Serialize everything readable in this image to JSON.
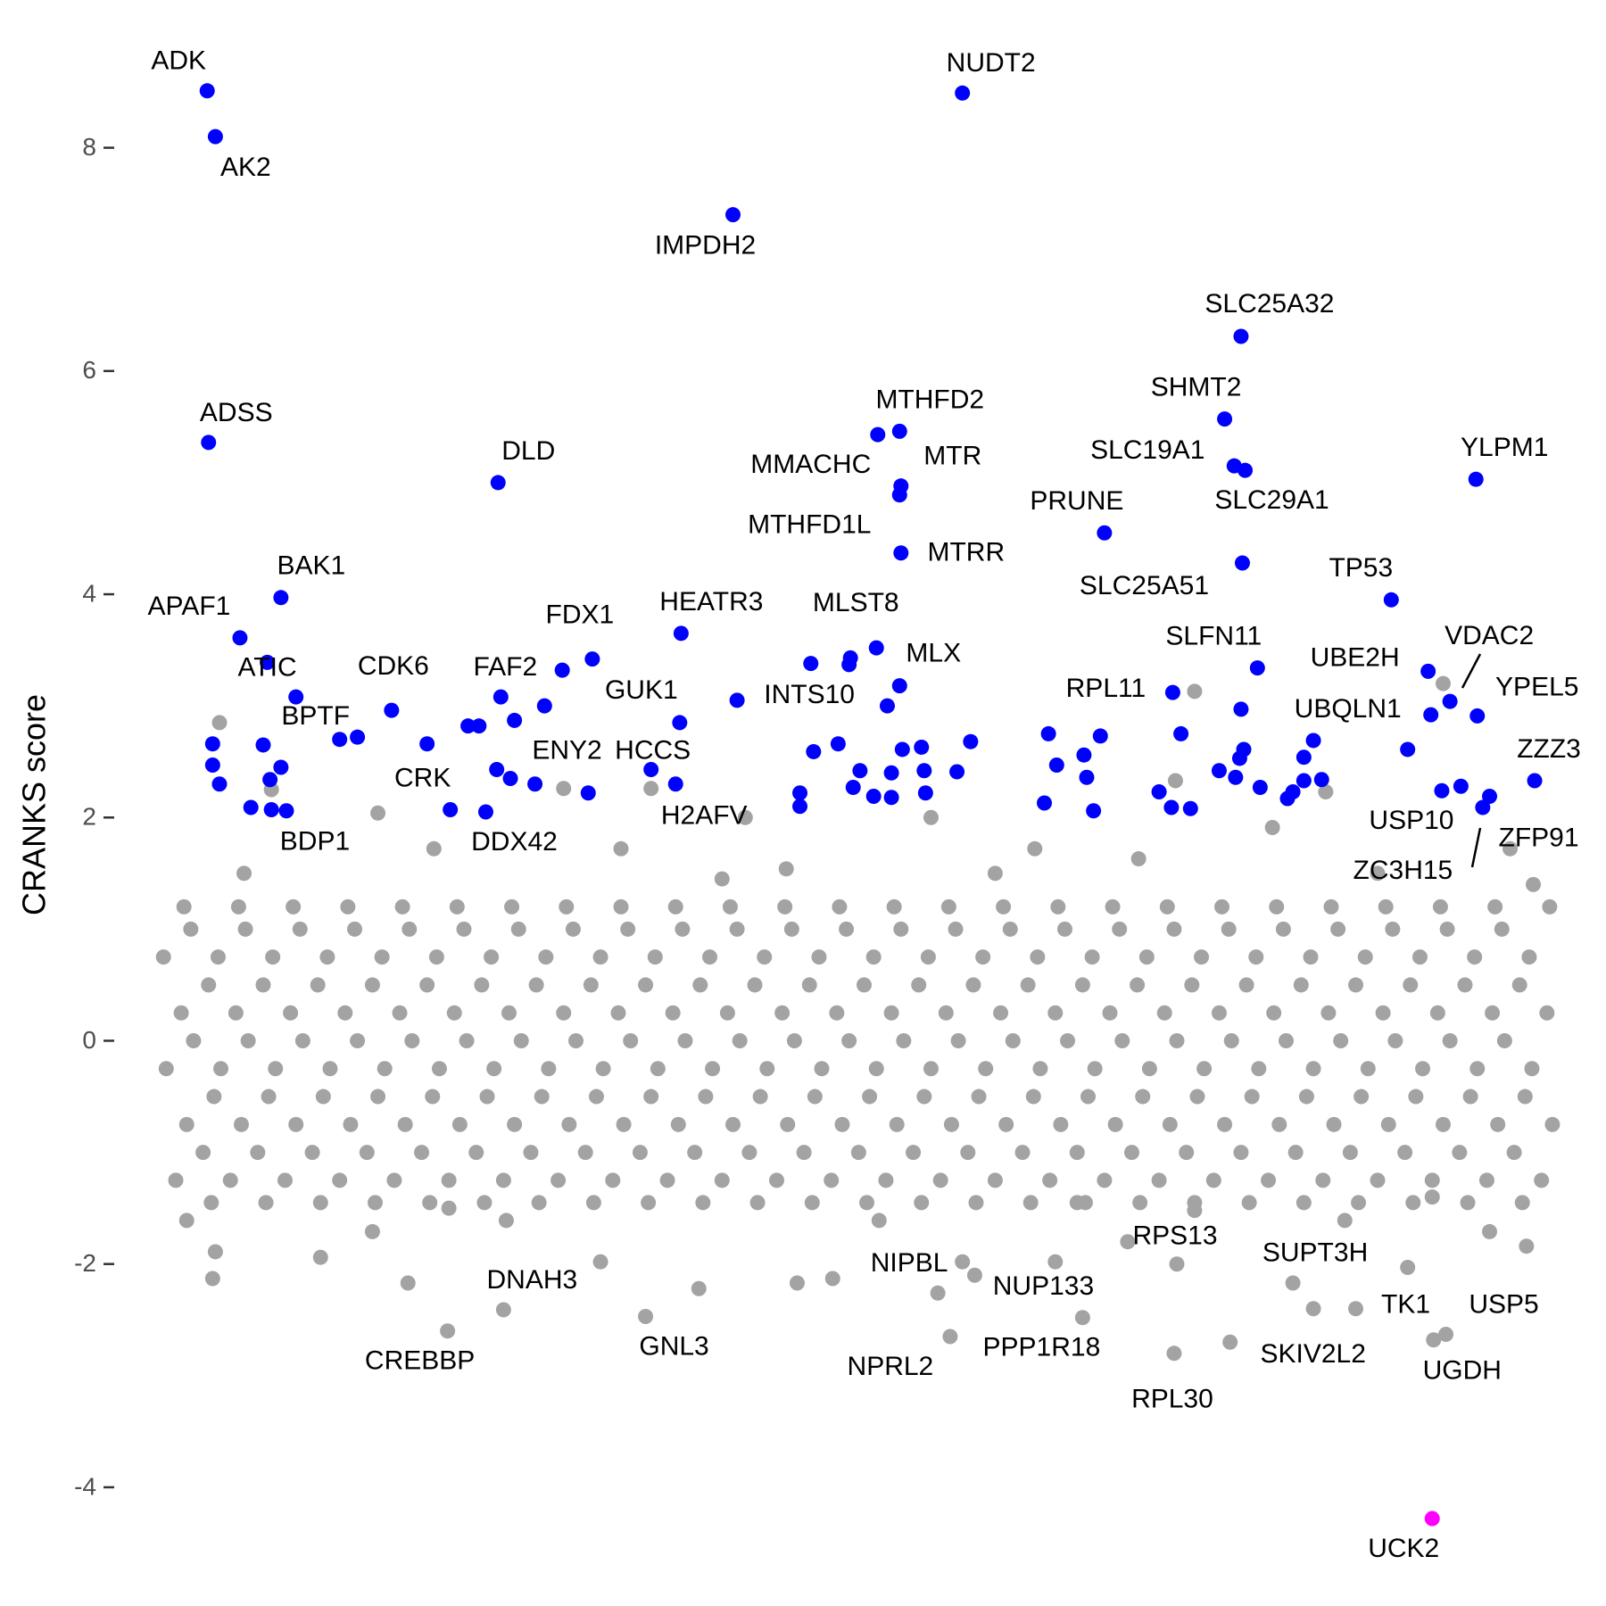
{
  "chart_data": {
    "type": "scatter",
    "y_label": "CRANKS score",
    "xlim": [
      -1,
      101
    ],
    "ylim": [
      -4.6,
      8.9
    ],
    "yticks": [
      -4,
      -2,
      0,
      2,
      4,
      6,
      8
    ],
    "series": [
      {
        "color": "#a3a3a3",
        "x": [
          0,
          0.8,
          -0.7,
          0.4,
          -0.9,
          0.6,
          2,
          2.8,
          1.3,
          2.4,
          1.1,
          2.6,
          4,
          4.8,
          3.3,
          4.4,
          3.1,
          4.6,
          6,
          6.8,
          5.3,
          6.4,
          5.1,
          6.6,
          8,
          8.8,
          7.3,
          8.4,
          7.1,
          8.6,
          10,
          10.8,
          9.3,
          10.4,
          9.1,
          10.6,
          12,
          12.8,
          11.3,
          12.4,
          11.1,
          12.6,
          14,
          14.8,
          13.3,
          14.4,
          13.1,
          14.6,
          16,
          16.8,
          15.3,
          16.4,
          15.1,
          16.6,
          18,
          18.8,
          17.3,
          18.4,
          17.1,
          18.6,
          20,
          20.8,
          19.3,
          20.4,
          19.1,
          20.6,
          22,
          22.8,
          21.3,
          22.4,
          21.1,
          22.6,
          24,
          24.8,
          23.3,
          24.4,
          23.1,
          24.6,
          26,
          26.8,
          25.3,
          26.4,
          25.1,
          26.6,
          28,
          28.8,
          27.3,
          28.4,
          27.1,
          28.6,
          30,
          30.8,
          29.3,
          30.4,
          29.1,
          30.6,
          32,
          32.8,
          31.3,
          32.4,
          31.1,
          32.6,
          34,
          34.8,
          33.3,
          34.4,
          33.1,
          34.6,
          36,
          36.8,
          35.3,
          36.4,
          35.1,
          36.6,
          38,
          38.8,
          37.3,
          38.4,
          37.1,
          38.6,
          40,
          40.8,
          39.3,
          40.4,
          39.1,
          40.6,
          42,
          42.8,
          41.3,
          42.4,
          41.1,
          42.6,
          44,
          44.8,
          43.3,
          44.4,
          43.1,
          44.6,
          46,
          46.8,
          45.3,
          46.4,
          45.1,
          46.6,
          48,
          48.8,
          47.3,
          48.4,
          47.1,
          48.6,
          50,
          50.8,
          49.3,
          50.4,
          49.1,
          50.6,
          52,
          52.8,
          51.3,
          52.4,
          51.1,
          52.6,
          54,
          54.8,
          53.3,
          54.4,
          53.1,
          54.6,
          56,
          56.8,
          55.3,
          56.4,
          55.1,
          56.6,
          58,
          58.8,
          57.3,
          58.4,
          57.1,
          58.6,
          60,
          60.8,
          59.3,
          60.4,
          59.1,
          60.6,
          62,
          62.8,
          61.3,
          62.4,
          61.1,
          62.6,
          64,
          64.8,
          63.3,
          64.4,
          63.1,
          64.6,
          66,
          66.8,
          65.3,
          66.4,
          65.1,
          66.6,
          68,
          68.8,
          67.3,
          68.4,
          67.1,
          68.6,
          70,
          70.8,
          69.3,
          70.4,
          69.1,
          70.6,
          72,
          72.8,
          71.3,
          72.4,
          71.1,
          72.6,
          74,
          74.8,
          73.3,
          74.4,
          73.1,
          74.6,
          76,
          76.8,
          75.3,
          76.4,
          75.1,
          76.6,
          78,
          78.8,
          77.3,
          78.4,
          77.1,
          78.6,
          80,
          80.8,
          79.3,
          80.4,
          79.1,
          80.6,
          82,
          82.8,
          81.3,
          82.4,
          81.1,
          82.6,
          84,
          84.8,
          83.3,
          84.4,
          83.1,
          84.6,
          86,
          86.8,
          85.3,
          86.4,
          85.1,
          86.6,
          88,
          88.8,
          87.3,
          88.4,
          87.1,
          88.6,
          90,
          90.8,
          89.3,
          90.4,
          89.1,
          90.6,
          92,
          92.8,
          91.3,
          92.4,
          91.1,
          92.6,
          94,
          94.8,
          93.3,
          94.4,
          93.1,
          94.6,
          96,
          96.8,
          95.3,
          96.4,
          95.1,
          96.6,
          98,
          98.8,
          97.3,
          98.4,
          97.1,
          98.6,
          100,
          100.8,
          99.3,
          100.4,
          99.1,
          100.6,
          3.2,
          74.6,
          73.2,
          92.8,
          7.0,
          14.8,
          28.4,
          34.8,
          41.7,
          84.2,
          80.3,
          32.6,
          55.3,
          97.7,
          99.4,
          2.7,
          2.9,
          14.4,
          17.0,
          38.3,
          45.5,
          48.1,
          57.6,
          64.4,
          69.7,
          81.8,
          90.2,
          98.9,
          31.1,
          10.6,
          74.6,
          51.5,
          24.2,
          85.6,
          0.8,
          96.2,
          62.9,
          18.9,
          70.5,
          44.7,
          5,
          40,
          60,
          88,
          20,
          66,
          92
        ],
        "values": [
          -1.25,
          -0.75,
          -0.25,
          0.25,
          0.75,
          1.2,
          -1.0,
          -0.5,
          0,
          0.5,
          1.0,
          -1.45,
          -1.25,
          -0.75,
          -0.25,
          0.25,
          0.75,
          1.2,
          -1.0,
          -0.5,
          0,
          0.5,
          1.0,
          -1.45,
          -1.25,
          -0.75,
          -0.25,
          0.25,
          0.75,
          1.2,
          -1.0,
          -0.5,
          0,
          0.5,
          1.0,
          -1.45,
          -1.25,
          -0.75,
          -0.25,
          0.25,
          0.75,
          1.2,
          -1.0,
          -0.5,
          0,
          0.5,
          1.0,
          -1.45,
          -1.25,
          -0.75,
          -0.25,
          0.25,
          0.75,
          1.2,
          -1.0,
          -0.5,
          0,
          0.5,
          1.0,
          -1.45,
          -1.25,
          -0.75,
          -0.25,
          0.25,
          0.75,
          1.2,
          -1.0,
          -0.5,
          0,
          0.5,
          1.0,
          -1.45,
          -1.25,
          -0.75,
          -0.25,
          0.25,
          0.75,
          1.2,
          -1.0,
          -0.5,
          0,
          0.5,
          1.0,
          -1.45,
          -1.25,
          -0.75,
          -0.25,
          0.25,
          0.75,
          1.2,
          -1.0,
          -0.5,
          0,
          0.5,
          1.0,
          -1.45,
          -1.25,
          -0.75,
          -0.25,
          0.25,
          0.75,
          1.2,
          -1.0,
          -0.5,
          0,
          0.5,
          1.0,
          -1.45,
          -1.25,
          -0.75,
          -0.25,
          0.25,
          0.75,
          1.2,
          -1.0,
          -0.5,
          0,
          0.5,
          1.0,
          -1.45,
          -1.25,
          -0.75,
          -0.25,
          0.25,
          0.75,
          1.2,
          -1.0,
          -0.5,
          0,
          0.5,
          1.0,
          -1.45,
          -1.25,
          -0.75,
          -0.25,
          0.25,
          0.75,
          1.2,
          -1.0,
          -0.5,
          0,
          0.5,
          1.0,
          -1.45,
          -1.25,
          -0.75,
          -0.25,
          0.25,
          0.75,
          1.2,
          -1.0,
          -0.5,
          0,
          0.5,
          1.0,
          -1.45,
          -1.25,
          -0.75,
          -0.25,
          0.25,
          0.75,
          1.2,
          -1.0,
          -0.5,
          0,
          0.5,
          1.0,
          -1.45,
          -1.25,
          -0.75,
          -0.25,
          0.25,
          0.75,
          1.2,
          -1.0,
          -0.5,
          0,
          0.5,
          1.0,
          -1.45,
          -1.25,
          -0.75,
          -0.25,
          0.25,
          0.75,
          1.2,
          -1.0,
          -0.5,
          0,
          0.5,
          1.0,
          -1.45,
          -1.25,
          -0.75,
          -0.25,
          0.25,
          0.75,
          1.2,
          -1.0,
          -0.5,
          0,
          0.5,
          1.0,
          -1.45,
          -1.25,
          -0.75,
          -0.25,
          0.25,
          0.75,
          1.2,
          -1.0,
          -0.5,
          0,
          0.5,
          1.0,
          -1.45,
          -1.25,
          -0.75,
          -0.25,
          0.25,
          0.75,
          1.2,
          -1.0,
          -0.5,
          0,
          0.5,
          1.0,
          -1.45,
          -1.25,
          -0.75,
          -0.25,
          0.25,
          0.75,
          1.2,
          -1.0,
          -0.5,
          0,
          0.5,
          1.0,
          -1.45,
          -1.25,
          -0.75,
          -0.25,
          0.25,
          0.75,
          1.2,
          -1.0,
          -0.5,
          0,
          0.5,
          1.0,
          -1.45,
          -1.25,
          -0.75,
          -0.25,
          0.25,
          0.75,
          1.2,
          -1.0,
          -0.5,
          0,
          0.5,
          1.0,
          -1.45,
          -1.25,
          -0.75,
          -0.25,
          0.25,
          0.75,
          1.2,
          -1.0,
          -0.5,
          0,
          0.5,
          1.0,
          -1.45,
          -1.25,
          -0.75,
          -0.25,
          0.25,
          0.75,
          1.2,
          -1.0,
          -0.5,
          0,
          0.5,
          1.0,
          -1.45,
          -1.25,
          -0.75,
          -0.25,
          0.25,
          0.75,
          1.2,
          -1.0,
          -0.5,
          0,
          0.5,
          1.0,
          -1.45,
          -1.25,
          -0.75,
          -0.25,
          0.25,
          0.75,
          1.2,
          2.85,
          3.13,
          2.33,
          3.2,
          2.25,
          2.04,
          2.26,
          2.26,
          2.0,
          2.23,
          1.91,
          1.72,
          2.0,
          1.72,
          1.4,
          -2.13,
          -1.89,
          -1.71,
          -2.17,
          -2.22,
          -2.17,
          -2.13,
          -1.98,
          -1.98,
          -1.8,
          -2.17,
          -2.03,
          -1.84,
          -1.98,
          -1.94,
          -1.52,
          -1.61,
          -1.61,
          -1.61,
          -1.61,
          -1.71,
          1.72,
          1.72,
          1.63,
          1.54,
          1.5,
          1.45,
          1.5,
          1.5,
          -1.5,
          -1.45,
          -1.4
        ]
      },
      {
        "color": "#a3a3a3",
        "labels": [
          "CREBBP",
          "DNAH3",
          "GNL3",
          "NIPBL",
          "NUP133",
          "NPRL2",
          "PPP1R18",
          "RPS13",
          "RPL30",
          "SUPT3H",
          "SKIV2L2",
          "TK1",
          "USP5",
          "UGDH"
        ],
        "x": [
          19.9,
          24.0,
          34.4,
          55.8,
          58.5,
          56.7,
          66.4,
          73.3,
          73.1,
          83.3,
          77.2,
          86.4,
          93.0,
          92.1
        ],
        "values": [
          -2.6,
          -2.41,
          -2.47,
          -2.26,
          -2.1,
          -2.65,
          -2.48,
          -2.0,
          -2.8,
          -2.4,
          -2.7,
          -2.4,
          -2.63,
          -2.68
        ]
      },
      {
        "color": "#0000ff",
        "labels": [
          "ADK",
          "AK2",
          "NUDT2",
          "IMPDH2",
          "SLC25A32",
          "SHMT2",
          "ADSS",
          "MTHFD2",
          "MMACHC",
          "MTR",
          "MTHFD1L",
          "MTRR",
          "DLD",
          "SLC19A1",
          "SLC29A1",
          "PRUNE",
          "SLC25A51",
          "YLPM1",
          "TP53",
          "BAK1",
          "APAF1",
          "ATIC",
          "BPTF",
          "FDX1",
          "HEATR3",
          "MLST8",
          "MLX",
          "CDK6",
          "FAF2",
          "GUK1",
          "INTS10",
          "SLFN11",
          "RPL11",
          "UBE2H",
          "VDAC2",
          "YPEL5",
          "UBQLN1",
          "ENY2",
          "HCCS",
          "H2AFV",
          "CRK",
          "BDP1",
          "DDX42",
          "ZZZ3",
          "USP10",
          "ZFP91",
          "ZC3H15",
          null,
          null,
          null,
          null,
          null,
          null,
          null,
          null,
          null,
          null,
          null,
          null,
          null,
          null,
          null,
          null,
          null,
          null,
          null,
          null,
          null,
          null,
          null,
          null,
          null,
          null,
          null,
          null,
          null,
          null,
          null,
          null,
          null,
          null,
          null,
          null,
          null,
          null,
          null,
          null,
          null,
          null,
          null,
          null,
          null,
          null,
          null,
          null,
          null,
          null,
          null,
          null,
          null,
          null,
          null,
          null,
          null,
          null,
          null,
          null,
          null,
          null,
          null
        ],
        "x": [
          2.3,
          2.9,
          57.6,
          40.8,
          78.0,
          76.8,
          2.4,
          53.0,
          51.4,
          53.1,
          53.0,
          53.1,
          23.6,
          77.5,
          78.3,
          68.0,
          78.1,
          95.2,
          89.0,
          7.7,
          4.7,
          6.7,
          8.8,
          30.5,
          37.0,
          51.3,
          53.0,
          15.8,
          23.8,
          36.9,
          41.1,
          79.2,
          73.0,
          91.7,
          93.3,
          95.3,
          91.9,
          26.3,
          34.8,
          36.6,
          20.1,
          8.1,
          22.7,
          99.5,
          92.7,
          96.2,
          94.1,
          2.7,
          2.7,
          3.2,
          5.5,
          6.4,
          6.9,
          7.0,
          7.7,
          12.0,
          13.3,
          18.4,
          21.4,
          22.2,
          23.5,
          24.5,
          24.8,
          27.0,
          28.3,
          30.2,
          46.5,
          49.4,
          49.3,
          46.7,
          48.5,
          45.7,
          45.7,
          50.1,
          49.6,
          51.1,
          52.1,
          52.4,
          52.4,
          53.2,
          54.6,
          54.8,
          54.9,
          57.2,
          58.2,
          63.9,
          64.5,
          63.6,
          66.5,
          66.7,
          67.7,
          67.2,
          72.0,
          72.9,
          73.6,
          74.3,
          76.4,
          77.6,
          77.9,
          78.2,
          78.0,
          79.4,
          81.4,
          81.8,
          82.6,
          82.6,
          83.3,
          83.9,
          90.2,
          95.7
        ],
        "values": [
          8.51,
          8.1,
          8.49,
          7.4,
          6.31,
          5.57,
          5.36,
          5.46,
          5.43,
          4.97,
          4.89,
          4.37,
          5.0,
          5.15,
          5.11,
          4.55,
          4.28,
          5.03,
          3.95,
          3.97,
          3.61,
          3.39,
          3.08,
          3.42,
          3.65,
          3.52,
          3.18,
          2.96,
          3.08,
          2.85,
          3.05,
          3.34,
          3.12,
          3.31,
          3.04,
          2.91,
          2.92,
          2.3,
          2.43,
          2.3,
          2.07,
          2.06,
          2.05,
          2.33,
          2.24,
          2.19,
          2.28,
          2.66,
          2.47,
          2.3,
          2.09,
          2.65,
          2.34,
          2.07,
          2.45,
          2.7,
          2.72,
          2.66,
          2.82,
          2.82,
          2.43,
          2.35,
          2.87,
          3.0,
          3.32,
          2.22,
          3.38,
          3.43,
          3.37,
          2.59,
          2.66,
          2.22,
          2.1,
          2.42,
          2.27,
          2.19,
          3.0,
          2.4,
          2.18,
          2.61,
          2.63,
          2.42,
          2.22,
          2.41,
          2.68,
          2.75,
          2.47,
          2.13,
          2.56,
          2.36,
          2.73,
          2.06,
          2.23,
          2.09,
          2.75,
          2.08,
          2.42,
          2.36,
          2.53,
          2.61,
          2.97,
          2.27,
          2.17,
          2.23,
          2.33,
          2.54,
          2.69,
          2.34,
          2.61,
          2.09
        ]
      },
      {
        "color": "#ff00ff",
        "labels": [
          "UCK2"
        ],
        "x": [
          92.0
        ],
        "values": [
          -4.28
        ]
      }
    ]
  }
}
